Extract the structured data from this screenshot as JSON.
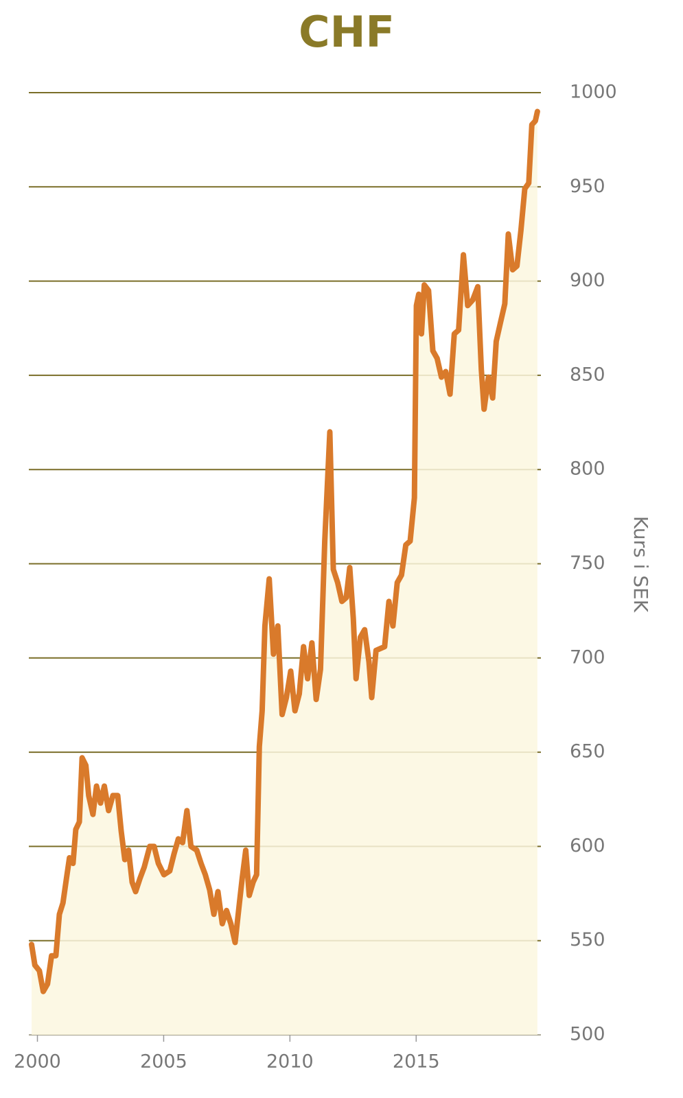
{
  "chart_data": {
    "type": "area-line",
    "title": "CHF",
    "y_label": "Kurs i SEK",
    "color": "#d97a2b",
    "fill_color": "#fcf7df",
    "grid": true,
    "grid_color": "#7a6e28",
    "xlim": [
      1999.66,
      2019.94
    ],
    "ylim": [
      500,
      1000
    ],
    "xticks": [
      2000,
      2005,
      2010,
      2015
    ],
    "yticks": [
      500,
      550,
      600,
      650,
      700,
      750,
      800,
      850,
      900,
      950,
      1000
    ],
    "x": [
      1999.77,
      1999.9,
      2000.08,
      2000.23,
      2000.4,
      2000.56,
      2000.73,
      2000.87,
      2001.01,
      2001.15,
      2001.27,
      2001.41,
      2001.52,
      2001.66,
      2001.77,
      2001.92,
      2002.03,
      2002.2,
      2002.34,
      2002.5,
      2002.65,
      2002.82,
      2002.99,
      2003.18,
      2003.32,
      2003.46,
      2003.61,
      2003.75,
      2003.89,
      2004.06,
      2004.23,
      2004.45,
      2004.62,
      2004.79,
      2005.01,
      2005.24,
      2005.41,
      2005.58,
      2005.75,
      2005.92,
      2006.08,
      2006.31,
      2006.48,
      2006.65,
      2006.82,
      2006.99,
      2007.15,
      2007.32,
      2007.49,
      2007.66,
      2007.83,
      2008.0,
      2008.11,
      2008.25,
      2008.39,
      2008.54,
      2008.68,
      2008.79,
      2008.9,
      2009.01,
      2009.18,
      2009.35,
      2009.52,
      2009.69,
      2009.86,
      2010.03,
      2010.2,
      2010.37,
      2010.54,
      2010.7,
      2010.87,
      2011.04,
      2011.21,
      2011.38,
      2011.58,
      2011.72,
      2011.89,
      2012.06,
      2012.23,
      2012.37,
      2012.51,
      2012.62,
      2012.79,
      2012.96,
      2013.13,
      2013.24,
      2013.41,
      2013.58,
      2013.75,
      2013.92,
      2014.08,
      2014.25,
      2014.42,
      2014.59,
      2014.76,
      2014.93,
      2015.01,
      2015.1,
      2015.21,
      2015.32,
      2015.49,
      2015.66,
      2015.83,
      2016.0,
      2016.17,
      2016.34,
      2016.51,
      2016.68,
      2016.87,
      2017.04,
      2017.24,
      2017.44,
      2017.58,
      2017.69,
      2017.86,
      2018.03,
      2018.17,
      2018.34,
      2018.51,
      2018.65,
      2018.82,
      2018.99,
      2019.15,
      2019.3,
      2019.46,
      2019.58,
      2019.72,
      2019.8
    ],
    "values": [
      548,
      537,
      534,
      523,
      527,
      542,
      542,
      564,
      570,
      583,
      594,
      591,
      609,
      613,
      647,
      643,
      627,
      617,
      632,
      623,
      632,
      619,
      627,
      627,
      608,
      593,
      598,
      581,
      576,
      583,
      589,
      600,
      600,
      591,
      585,
      587,
      596,
      604,
      602,
      619,
      600,
      598,
      591,
      585,
      577,
      564,
      576,
      559,
      566,
      559,
      549,
      570,
      583,
      598,
      574,
      581,
      585,
      653,
      672,
      717,
      742,
      702,
      717,
      670,
      679,
      693,
      672,
      681,
      706,
      689,
      708,
      678,
      694,
      762,
      820,
      747,
      740,
      730,
      732,
      748,
      721,
      689,
      711,
      715,
      698,
      679,
      704,
      705,
      706,
      730,
      717,
      740,
      744,
      760,
      762,
      785,
      887,
      893,
      872,
      898,
      895,
      863,
      859,
      849,
      852,
      840,
      872,
      874,
      914,
      887,
      890,
      897,
      853,
      832,
      849,
      838,
      868,
      878,
      888,
      925,
      906,
      908,
      927,
      949,
      952,
      983,
      985,
      990
    ]
  }
}
